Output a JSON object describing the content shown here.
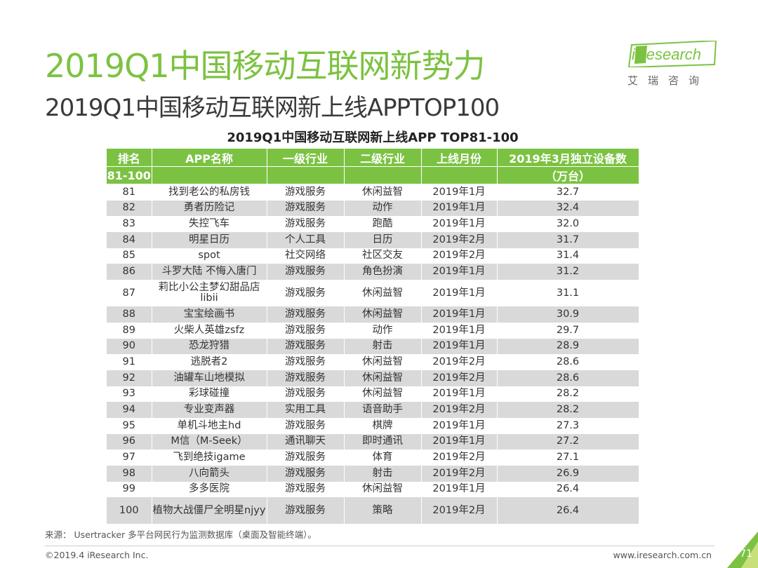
{
  "title": "2019Q1中国移动互联网新势力",
  "subtitle": "2019Q1中国移动互联网新上线APPTOP100",
  "logo": {
    "brand": "iResearch",
    "sub": "艾瑞咨询"
  },
  "table_title": "2019Q1中国移动互联网新上线APP TOP81-100",
  "headers": {
    "rank": "排名",
    "name": "APP名称",
    "level1": "一级行业",
    "level2": "二级行业",
    "month": "上线月份",
    "value": "2019年3月独立设备数",
    "rank_range": "81-100",
    "value_unit": "（万台）"
  },
  "rows": [
    {
      "rank": "81",
      "name": "找到老公的私房钱",
      "level1": "游戏服务",
      "level2": "休闲益智",
      "month": "2019年1月",
      "value": "32.7"
    },
    {
      "rank": "82",
      "name": "勇者历险记",
      "level1": "游戏服务",
      "level2": "动作",
      "month": "2019年1月",
      "value": "32.4"
    },
    {
      "rank": "83",
      "name": "失控飞车",
      "level1": "游戏服务",
      "level2": "跑酷",
      "month": "2019年1月",
      "value": "32.0"
    },
    {
      "rank": "84",
      "name": "明星日历",
      "level1": "个人工具",
      "level2": "日历",
      "month": "2019年2月",
      "value": "31.7"
    },
    {
      "rank": "85",
      "name": "spot",
      "level1": "社交网络",
      "level2": "社区交友",
      "month": "2019年2月",
      "value": "31.4"
    },
    {
      "rank": "86",
      "name": "斗罗大陆 不悔入唐门",
      "level1": "游戏服务",
      "level2": "角色扮演",
      "month": "2019年1月",
      "value": "31.2"
    },
    {
      "rank": "87",
      "name": "莉比小公主梦幻甜品店libii",
      "level1": "游戏服务",
      "level2": "休闲益智",
      "month": "2019年1月",
      "value": "31.1"
    },
    {
      "rank": "88",
      "name": "宝宝绘画书",
      "level1": "游戏服务",
      "level2": "休闲益智",
      "month": "2019年1月",
      "value": "30.9"
    },
    {
      "rank": "89",
      "name": "火柴人英雄zsfz",
      "level1": "游戏服务",
      "level2": "动作",
      "month": "2019年1月",
      "value": "29.7"
    },
    {
      "rank": "90",
      "name": "恐龙狩猎",
      "level1": "游戏服务",
      "level2": "射击",
      "month": "2019年1月",
      "value": "28.9"
    },
    {
      "rank": "91",
      "name": "逃脱者2",
      "level1": "游戏服务",
      "level2": "休闲益智",
      "month": "2019年2月",
      "value": "28.6"
    },
    {
      "rank": "92",
      "name": "油罐车山地模拟",
      "level1": "游戏服务",
      "level2": "休闲益智",
      "month": "2019年2月",
      "value": "28.6"
    },
    {
      "rank": "93",
      "name": "彩球碰撞",
      "level1": "游戏服务",
      "level2": "休闲益智",
      "month": "2019年1月",
      "value": "28.2"
    },
    {
      "rank": "94",
      "name": "专业变声器",
      "level1": "实用工具",
      "level2": "语音助手",
      "month": "2019年2月",
      "value": "28.2"
    },
    {
      "rank": "95",
      "name": "单机斗地主hd",
      "level1": "游戏服务",
      "level2": "棋牌",
      "month": "2019年1月",
      "value": "27.3"
    },
    {
      "rank": "96",
      "name": "M信（M-Seek）",
      "level1": "通讯聊天",
      "level2": "即时通讯",
      "month": "2019年1月",
      "value": "27.2"
    },
    {
      "rank": "97",
      "name": "飞到绝技igame",
      "level1": "游戏服务",
      "level2": "体育",
      "month": "2019年2月",
      "value": "27.1"
    },
    {
      "rank": "98",
      "name": "八向箭头",
      "level1": "游戏服务",
      "level2": "射击",
      "month": "2019年2月",
      "value": "26.9"
    },
    {
      "rank": "99",
      "name": "多多医院",
      "level1": "游戏服务",
      "level2": "休闲益智",
      "month": "2019年1月",
      "value": "26.4"
    },
    {
      "rank": "100",
      "name": "植物大战僵尸全明星njyy",
      "level1": "游戏服务",
      "level2": "策略",
      "month": "2019年2月",
      "value": "26.4"
    }
  ],
  "source": "来源： Usertracker 多平台网民行为监测数据库（桌面及智能终端）。",
  "copyright": "©2019.4 iResearch Inc.",
  "website": "www.iresearch.com.cn",
  "page_number": "71",
  "colors": {
    "accent": "#7cc242",
    "stripe": "#d9d9d9"
  }
}
